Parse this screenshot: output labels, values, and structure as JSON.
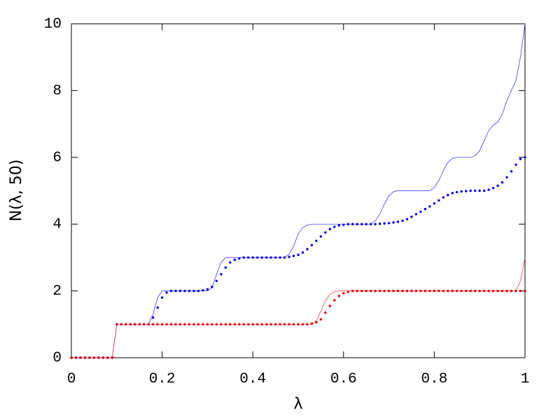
{
  "chart_data": {
    "type": "line",
    "xlabel": "λ",
    "ylabel": "N(λ, 50)",
    "xlim": [
      0,
      1
    ],
    "ylim": [
      0,
      10
    ],
    "xticks": [
      0,
      0.2,
      0.4,
      0.6,
      0.8,
      1
    ],
    "yticks": [
      0,
      2,
      4,
      6,
      8,
      10
    ],
    "x": [
      0,
      0.01,
      0.02,
      0.03,
      0.04,
      0.05,
      0.06,
      0.07,
      0.08,
      0.09,
      0.1,
      0.11,
      0.12,
      0.13,
      0.14,
      0.15,
      0.16,
      0.17,
      0.18,
      0.19,
      0.2,
      0.21,
      0.22,
      0.23,
      0.24,
      0.25,
      0.26,
      0.27,
      0.28,
      0.29,
      0.3,
      0.31,
      0.32,
      0.33,
      0.34,
      0.35,
      0.36,
      0.37,
      0.38,
      0.39,
      0.4,
      0.41,
      0.42,
      0.43,
      0.44,
      0.45,
      0.46,
      0.47,
      0.48,
      0.49,
      0.5,
      0.51,
      0.52,
      0.53,
      0.54,
      0.55,
      0.56,
      0.57,
      0.58,
      0.59,
      0.6,
      0.61,
      0.62,
      0.63,
      0.64,
      0.65,
      0.66,
      0.67,
      0.68,
      0.69,
      0.7,
      0.71,
      0.72,
      0.73,
      0.74,
      0.75,
      0.76,
      0.77,
      0.78,
      0.79,
      0.8,
      0.81,
      0.82,
      0.83,
      0.84,
      0.85,
      0.86,
      0.87,
      0.88,
      0.89,
      0.9,
      0.91,
      0.92,
      0.93,
      0.94,
      0.95,
      0.96,
      0.97,
      0.98,
      0.99,
      1
    ],
    "series": [
      {
        "color": "#2020ff",
        "style": "line",
        "values": [
          0,
          0,
          0,
          0,
          0,
          0,
          0,
          0,
          0,
          0,
          1,
          1,
          1,
          1,
          1,
          1,
          1,
          1,
          1.3,
          1.8,
          2,
          2,
          2,
          2,
          2,
          2,
          2,
          2,
          2,
          2,
          2,
          2.1,
          2.5,
          2.85,
          3,
          3,
          3,
          3,
          3,
          3,
          3,
          3,
          3,
          3,
          3,
          3,
          3,
          3,
          3.1,
          3.35,
          3.7,
          3.9,
          3.97,
          4,
          4,
          4,
          4,
          4,
          4,
          4,
          4,
          4,
          4,
          4,
          4,
          4,
          4,
          4.1,
          4.3,
          4.6,
          4.85,
          4.97,
          5,
          5,
          5,
          5,
          5,
          5,
          5,
          5,
          5.1,
          5.3,
          5.6,
          5.85,
          5.97,
          6,
          6,
          6,
          6,
          6.05,
          6.2,
          6.5,
          6.8,
          6.97,
          7.05,
          7.3,
          7.7,
          8.0,
          8.3,
          9.0,
          10
        ]
      },
      {
        "color": "#ff2020",
        "style": "line",
        "values": [
          0,
          0,
          0,
          0,
          0,
          0,
          0,
          0,
          0,
          0,
          1,
          1,
          1,
          1,
          1,
          1,
          1,
          1,
          1,
          1,
          1,
          1,
          1,
          1,
          1,
          1,
          1,
          1,
          1,
          1,
          1,
          1,
          1,
          1,
          1,
          1,
          1,
          1,
          1,
          1,
          1,
          1,
          1,
          1,
          1,
          1,
          1,
          1,
          1,
          1,
          1,
          1,
          1,
          1,
          1.1,
          1.4,
          1.7,
          1.9,
          1.98,
          2,
          2,
          2,
          2,
          2,
          2,
          2,
          2,
          2,
          2,
          2,
          2,
          2,
          2,
          2,
          2,
          2,
          2,
          2,
          2,
          2,
          2,
          2,
          2,
          2,
          2,
          2,
          2,
          2,
          2,
          2,
          2,
          2,
          2,
          2,
          2,
          2,
          2,
          2,
          2,
          2.3,
          3
        ]
      },
      {
        "color": "#0000dd",
        "style": "dots",
        "values": [
          0,
          0,
          0,
          0,
          0,
          0,
          0,
          0,
          0,
          0,
          1,
          1,
          1,
          1,
          1,
          1,
          1,
          1,
          1.2,
          1.5,
          1.8,
          1.95,
          2,
          2,
          2,
          2,
          2,
          2,
          2,
          2.02,
          2.05,
          2.12,
          2.3,
          2.5,
          2.7,
          2.85,
          2.93,
          2.97,
          3,
          3,
          3,
          3,
          3,
          3,
          3,
          3,
          3,
          3,
          3.02,
          3.05,
          3.08,
          3.15,
          3.25,
          3.37,
          3.5,
          3.63,
          3.75,
          3.85,
          3.92,
          3.96,
          3.98,
          4,
          4,
          4,
          4,
          4,
          4,
          4,
          4.01,
          4.02,
          4.03,
          4.05,
          4.07,
          4.1,
          4.15,
          4.22,
          4.3,
          4.37,
          4.45,
          4.53,
          4.62,
          4.71,
          4.8,
          4.87,
          4.93,
          4.96,
          4.98,
          4.99,
          5,
          5,
          5,
          5,
          5.03,
          5.08,
          5.15,
          5.25,
          5.4,
          5.58,
          5.78,
          5.95,
          6
        ]
      },
      {
        "color": "#dd0000",
        "style": "dots",
        "values": [
          0,
          0,
          0,
          0,
          0,
          0,
          0,
          0,
          0,
          0,
          1,
          1,
          1,
          1,
          1,
          1,
          1,
          1,
          1,
          1,
          1,
          1,
          1,
          1,
          1,
          1,
          1,
          1,
          1,
          1,
          1,
          1,
          1,
          1,
          1,
          1,
          1,
          1,
          1,
          1,
          1,
          1,
          1,
          1,
          1,
          1,
          1,
          1,
          1,
          1,
          1,
          1,
          1,
          1.02,
          1.06,
          1.15,
          1.35,
          1.55,
          1.72,
          1.85,
          1.93,
          1.97,
          2,
          2,
          2,
          2,
          2,
          2,
          2,
          2,
          2,
          2,
          2,
          2,
          2,
          2,
          2,
          2,
          2,
          2,
          2,
          2,
          2,
          2,
          2,
          2,
          2,
          2,
          2,
          2,
          2,
          2,
          2,
          2,
          2,
          2,
          2,
          2,
          2,
          2,
          2
        ]
      }
    ]
  }
}
